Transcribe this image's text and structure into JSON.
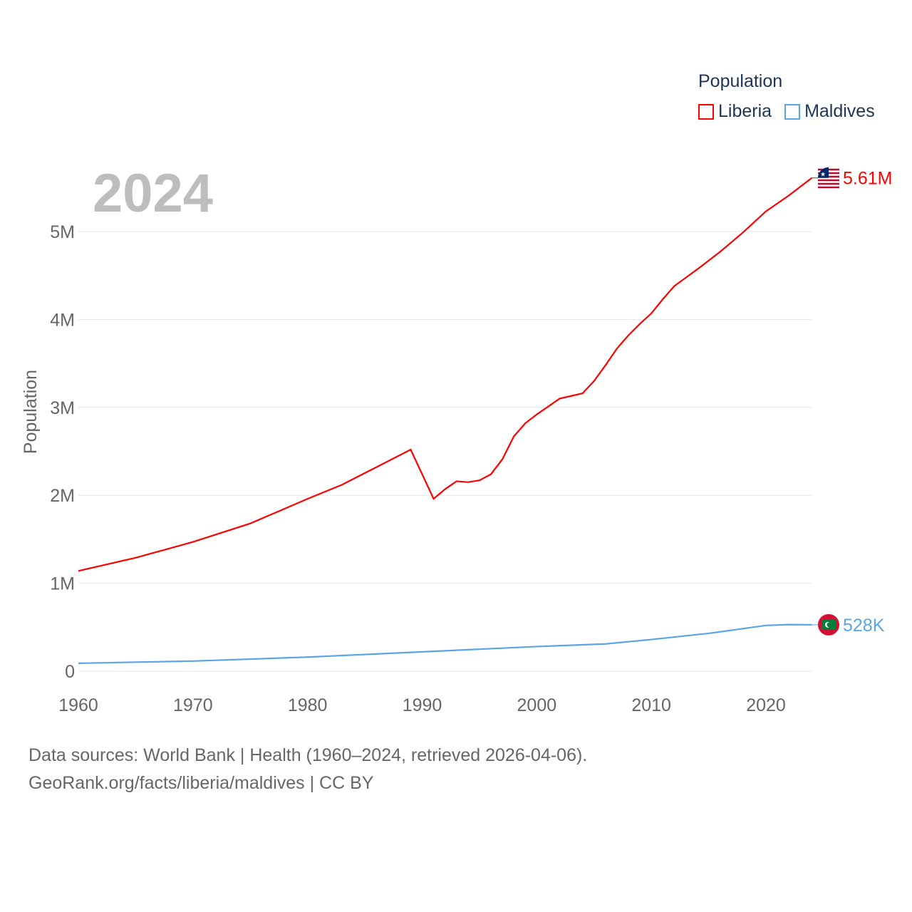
{
  "chart_data": {
    "type": "line",
    "title": "Population",
    "ylabel": "Population",
    "xlabel": "",
    "xlim": [
      1960,
      2024
    ],
    "ylim": [
      0,
      5000000
    ],
    "year_label": "2024",
    "x_ticks": [
      "1960",
      "1970",
      "1980",
      "1990",
      "2000",
      "2010",
      "2020"
    ],
    "y_ticks": [
      {
        "v": 0,
        "label": "0"
      },
      {
        "v": 1000000,
        "label": "1M"
      },
      {
        "v": 2000000,
        "label": "2M"
      },
      {
        "v": 3000000,
        "label": "3M"
      },
      {
        "v": 4000000,
        "label": "4M"
      },
      {
        "v": 5000000,
        "label": "5M"
      }
    ],
    "grid": true,
    "legend_placement": "top-right",
    "series": [
      {
        "name": "Liberia",
        "color": "#ff0000",
        "end_label": "5.61M",
        "x": [
          1960,
          1965,
          1970,
          1975,
          1980,
          1983,
          1986,
          1989,
          1991,
          1992,
          1993,
          1994,
          1995,
          1996,
          1997,
          1998,
          1999,
          2000,
          2001,
          2002,
          2003,
          2004,
          2005,
          2006,
          2007,
          2008,
          2009,
          2010,
          2011,
          2012,
          2014,
          2016,
          2018,
          2020,
          2022,
          2024
        ],
        "y": [
          1140000,
          1290000,
          1470000,
          1680000,
          1960000,
          2120000,
          2320000,
          2520000,
          1960000,
          2070000,
          2160000,
          2150000,
          2170000,
          2240000,
          2410000,
          2670000,
          2820000,
          2920000,
          3010000,
          3100000,
          3130000,
          3160000,
          3300000,
          3480000,
          3670000,
          3820000,
          3950000,
          4070000,
          4230000,
          4380000,
          4570000,
          4770000,
          4990000,
          5230000,
          5410000,
          5610000
        ]
      },
      {
        "name": "Maldives",
        "color": "#5aa5e6",
        "end_label": "528K",
        "x": [
          1960,
          1970,
          1980,
          1990,
          2000,
          2006,
          2010,
          2015,
          2020,
          2022,
          2024
        ],
        "y": [
          90000,
          115000,
          160000,
          220000,
          280000,
          310000,
          360000,
          430000,
          520000,
          530000,
          528000
        ]
      }
    ]
  },
  "footer": {
    "line1": "Data sources: World Bank | Health (1960–2024, retrieved 2026-04-06).",
    "line2": "GeoRank.org/facts/liberia/maldives | CC BY"
  }
}
